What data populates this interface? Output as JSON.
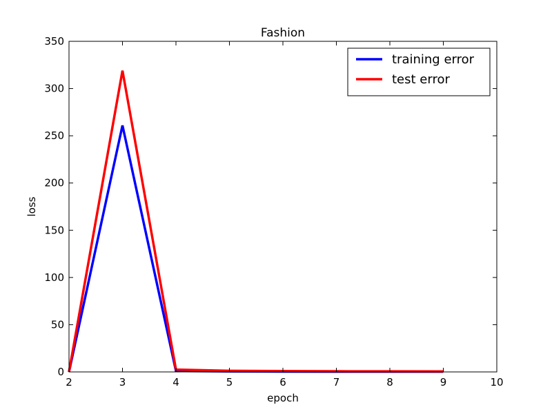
{
  "chart_data": {
    "type": "line",
    "title": "Fashion",
    "xlabel": "epoch",
    "ylabel": "loss",
    "xlim": [
      2,
      10
    ],
    "ylim": [
      0,
      350
    ],
    "xticks": [
      2,
      3,
      4,
      5,
      6,
      7,
      8,
      9,
      10
    ],
    "yticks": [
      0,
      50,
      100,
      150,
      200,
      250,
      300,
      350
    ],
    "grid": false,
    "legend_position": "top-right",
    "x": [
      2,
      3,
      4,
      5,
      6,
      7,
      8,
      9
    ],
    "series": [
      {
        "name": "training error",
        "color": "#0000ff",
        "values": [
          0,
          261,
          1,
          0.5,
          0.4,
          0.3,
          0.3,
          0.3
        ]
      },
      {
        "name": "test error",
        "color": "#ff0000",
        "values": [
          0,
          319,
          2.5,
          1.2,
          0.9,
          0.7,
          0.6,
          0.5
        ]
      }
    ]
  }
}
